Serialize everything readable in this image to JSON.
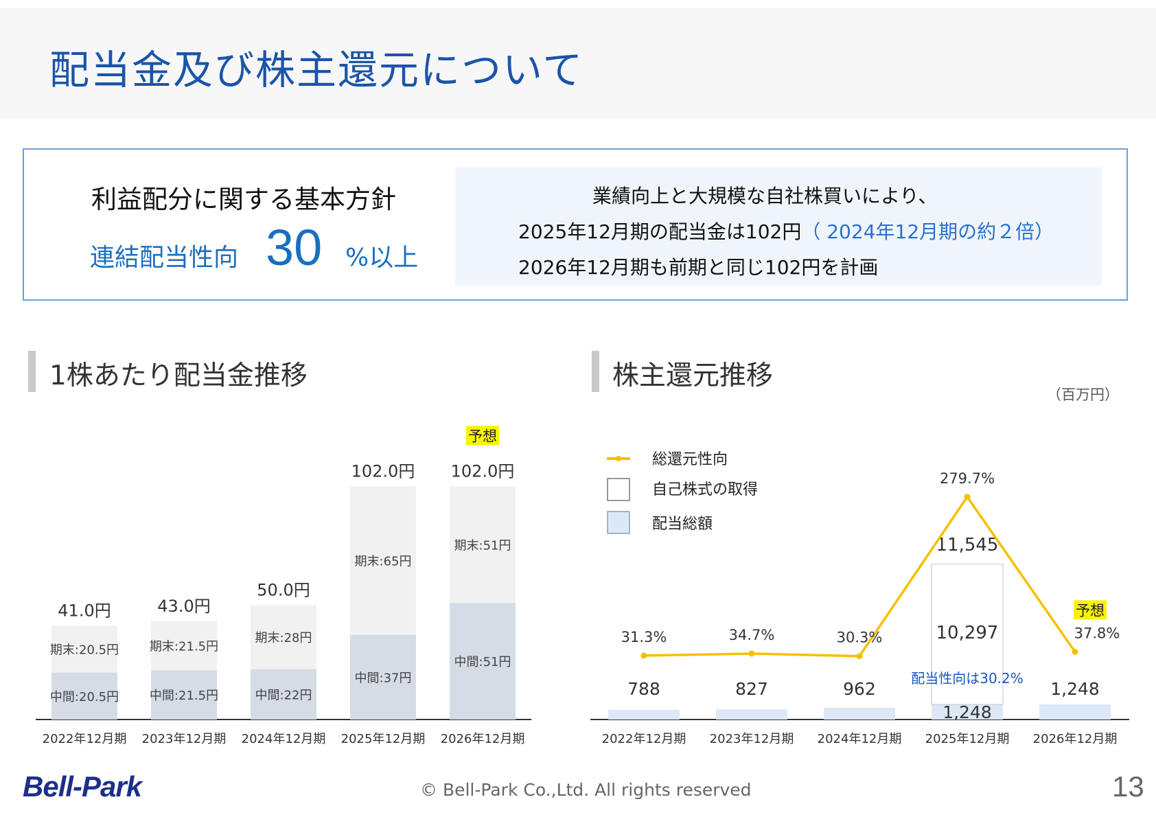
{
  "header": {
    "title": "配当金及び株主還元について"
  },
  "policy": {
    "heading": "利益配分に関する基本方針",
    "ratio_label": "連結配当性向",
    "ratio_value": "30",
    "ratio_suffix": "%以上",
    "lines": [
      "業績向上と大規模な自社株買いにより、",
      "2025年12月期の配当金は102円",
      "（ 2024年12月期の約２倍）",
      "2026年12月期も前期と同じ102円を計画"
    ]
  },
  "sections": {
    "left_title": "1株あたり配当金推移",
    "right_title": "株主還元推移"
  },
  "chart_data": [
    {
      "type": "bar",
      "title": "1株あたり配当金推移",
      "categories": [
        "2022年12月期",
        "2023年12月期",
        "2024年12月期",
        "2025年12月期",
        "2026年12月期"
      ],
      "series": [
        {
          "values": [
            20.5,
            21.5,
            22,
            37,
            51
          ],
          "labels": [
            "中間:20.5円",
            "中間:21.5円",
            "中間:22円",
            "中間:37円",
            "中間:51円"
          ]
        },
        {
          "values": [
            20.5,
            21.5,
            28,
            65,
            51
          ],
          "labels": [
            "期末:20.5円",
            "期末:21.5円",
            "期末:28円",
            "期末:65円",
            "期末:51円"
          ]
        }
      ],
      "totals": [
        "41.0円",
        "43.0円",
        "50.0円",
        "102.0円",
        "102.0円"
      ],
      "forecast_label": "予想",
      "colors": {
        "interim": "#d5dce6",
        "year_end": "#f1f1f1",
        "axis": "#333333"
      },
      "ylim": [
        0,
        110
      ]
    },
    {
      "type": "bar",
      "title": "株主還元推移",
      "unit_label": "（百万円）",
      "categories": [
        "2022年12月期",
        "2023年12月期",
        "2024年12月期",
        "2025年12月期",
        "2026年12月期"
      ],
      "legend": [
        "総還元性向",
        "自己株式の取得",
        "配当総額"
      ],
      "dividend_total": {
        "values": [
          788,
          827,
          962,
          1248,
          1248
        ],
        "labels": [
          "788",
          "827",
          "962",
          "1,248",
          "1,248"
        ]
      },
      "buyback": {
        "values": [
          0,
          0,
          0,
          10297,
          0
        ],
        "labels": [
          "",
          "",
          "",
          "10,297",
          ""
        ]
      },
      "combined_total_label": "11,545",
      "total_payout_ratio": {
        "values": [
          31.3,
          34.7,
          30.3,
          279.7,
          37.8
        ],
        "labels": [
          "31.3%",
          "34.7%",
          "30.3%",
          "279.7%",
          "37.8%"
        ]
      },
      "payout_note": "配当性向は30.2%",
      "forecast_label": "予想",
      "colors": {
        "line": "#f5c000",
        "dividend_bar": "#dce8f6",
        "buyback_bar": "#ffffff",
        "note": "#1a55c0"
      }
    }
  ],
  "footer": {
    "logo": "Bell-Park",
    "copyright": "© Bell-Park Co.,Ltd. All rights reserved",
    "page_number": "13"
  }
}
